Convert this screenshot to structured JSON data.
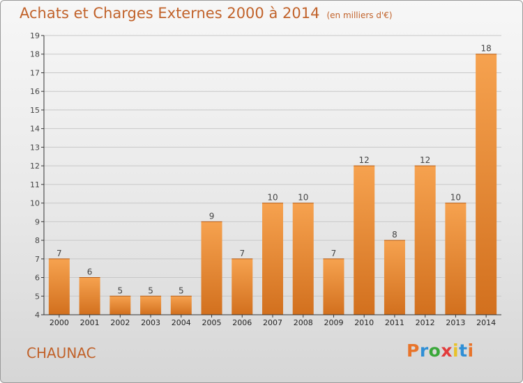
{
  "header": {
    "title": "Achats et Charges Externes 2000 à 2014",
    "unit": "(en milliers d'€)"
  },
  "footer": {
    "town": "CHAUNAC",
    "logo_text": "Proxiti"
  },
  "colors": {
    "bar_top": "#f6a24f",
    "bar_bottom": "#d2701e",
    "title": "#c1622a",
    "axis": "#333333",
    "grid": "#c8c8c8"
  },
  "chart_data": {
    "type": "bar",
    "title": "Achats et Charges Externes 2000 à 2014",
    "subtitle": "(en milliers d'€)",
    "categories": [
      "2000",
      "2001",
      "2002",
      "2003",
      "2004",
      "2005",
      "2006",
      "2007",
      "2008",
      "2009",
      "2010",
      "2011",
      "2012",
      "2013",
      "2014"
    ],
    "values": [
      7,
      6,
      5,
      5,
      5,
      9,
      7,
      10,
      10,
      7,
      12,
      8,
      12,
      10,
      18
    ],
    "ylim": [
      4,
      19
    ],
    "yticks": [
      4,
      5,
      6,
      7,
      8,
      9,
      10,
      11,
      12,
      13,
      14,
      15,
      16,
      17,
      18,
      19
    ],
    "grid": true,
    "data_labels": true
  }
}
